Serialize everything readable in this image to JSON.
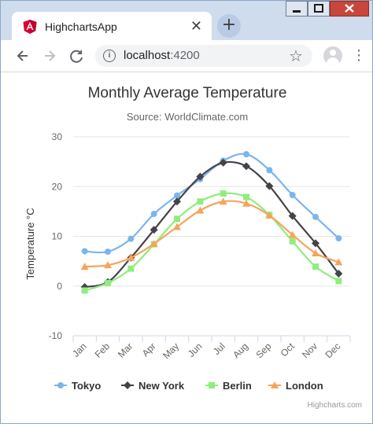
{
  "window": {
    "tab_title": "HighchartsApp",
    "tab_close": "✕",
    "new_tab": "+",
    "url_host": "localhost",
    "url_port": ":4200",
    "icons": [
      "angular-logo-icon",
      "close-icon",
      "plus-icon",
      "back-icon",
      "forward-icon",
      "reload-icon",
      "info-icon",
      "star-icon",
      "profile-icon",
      "menu-icon"
    ],
    "colors": {
      "tab_strip": "#cfdcee",
      "angular_red": "#dd0031"
    }
  },
  "chart_data": {
    "type": "line",
    "title": "Monthly Average Temperature",
    "subtitle": "Source: WorldClimate.com",
    "ylabel": "Temperature °C",
    "xlabel": "",
    "ylim": [
      -10,
      30
    ],
    "yticks": [
      -10,
      0,
      10,
      20,
      30
    ],
    "grid": true,
    "legend_position": "bottom",
    "categories": [
      "Jan",
      "Feb",
      "Mar",
      "Apr",
      "May",
      "Jun",
      "Jul",
      "Aug",
      "Sep",
      "Oct",
      "Nov",
      "Dec"
    ],
    "series": [
      {
        "name": "Tokyo",
        "color": "#7cb5ec",
        "marker": "circle",
        "values": [
          7.0,
          6.9,
          9.5,
          14.5,
          18.2,
          21.5,
          25.2,
          26.5,
          23.3,
          18.3,
          13.9,
          9.6
        ]
      },
      {
        "name": "New York",
        "color": "#434348",
        "marker": "diamond",
        "values": [
          -0.2,
          0.8,
          5.7,
          11.3,
          17.0,
          22.0,
          24.8,
          24.1,
          20.1,
          14.1,
          8.6,
          2.5
        ]
      },
      {
        "name": "Berlin",
        "color": "#90ed7d",
        "marker": "square",
        "values": [
          -0.9,
          0.6,
          3.5,
          8.4,
          13.5,
          17.0,
          18.6,
          17.9,
          14.3,
          9.0,
          3.9,
          1.0
        ]
      },
      {
        "name": "London",
        "color": "#f7a35c",
        "marker": "triangle",
        "values": [
          3.9,
          4.2,
          5.7,
          8.5,
          11.9,
          15.2,
          17.0,
          16.6,
          14.2,
          10.3,
          6.6,
          4.8
        ]
      }
    ],
    "credits": "Highcharts.com"
  }
}
